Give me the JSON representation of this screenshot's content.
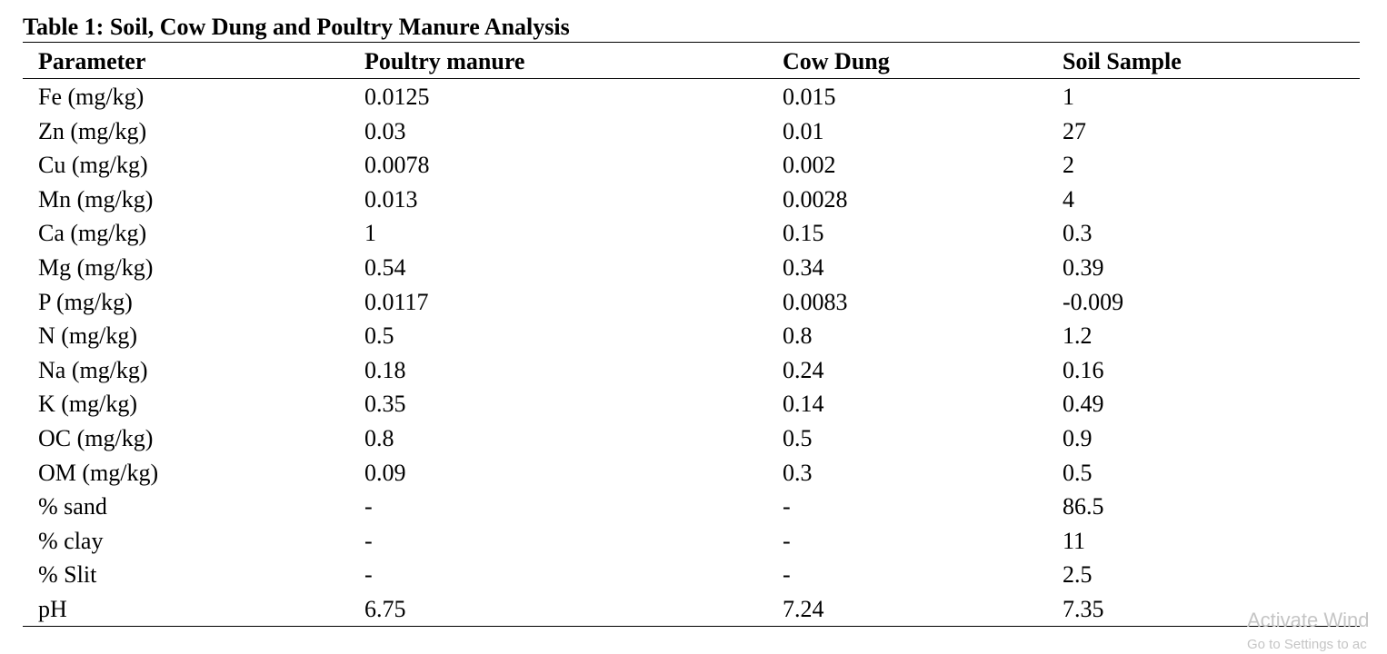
{
  "caption": "Table 1: Soil, Cow Dung and Poultry Manure Analysis",
  "columns": [
    "Parameter",
    "Poultry manure",
    "Cow Dung",
    "Soil Sample"
  ],
  "rows": [
    [
      "Fe (mg/kg)",
      "0.0125",
      "0.015",
      "1"
    ],
    [
      "Zn (mg/kg)",
      "0.03",
      "0.01",
      "27"
    ],
    [
      "Cu (mg/kg)",
      "0.0078",
      "0.002",
      "2"
    ],
    [
      "Mn (mg/kg)",
      "0.013",
      "0.0028",
      "4"
    ],
    [
      "Ca (mg/kg)",
      "1",
      "0.15",
      "0.3"
    ],
    [
      "Mg (mg/kg)",
      "0.54",
      "0.34",
      "0.39"
    ],
    [
      "P (mg/kg)",
      "0.0117",
      "0.0083",
      "-0.009"
    ],
    [
      "N (mg/kg)",
      "0.5",
      "0.8",
      "1.2"
    ],
    [
      "Na (mg/kg)",
      "0.18",
      "0.24",
      "0.16"
    ],
    [
      "K (mg/kg)",
      "0.35",
      "0.14",
      "0.49"
    ],
    [
      "OC (mg/kg)",
      "0.8",
      "0.5",
      "0.9"
    ],
    [
      "OM (mg/kg)",
      "0.09",
      "0.3",
      "0.5"
    ],
    [
      "% sand",
      "-",
      "-",
      "86.5"
    ],
    [
      "% clay",
      "-",
      "-",
      "11"
    ],
    [
      "% Slit",
      "-",
      "-",
      "2.5"
    ],
    [
      "pH",
      "6.75",
      "7.24",
      "7.35"
    ]
  ],
  "watermark": {
    "title": "Activate Wind",
    "subtitle": "Go to Settings to ac"
  }
}
